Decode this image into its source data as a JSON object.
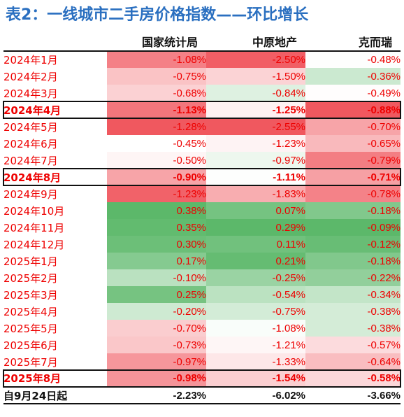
{
  "title": "表2：一线城市二手房价格指数——环比增长",
  "columns": [
    "",
    "国家统计局",
    "中原地产",
    "克而瑞"
  ],
  "rows": [
    {
      "label": "2024年1月",
      "values": [
        "-1.08%",
        "-2.50%",
        "-0.48%"
      ],
      "highlight": false
    },
    {
      "label": "2024年2月",
      "values": [
        "-0.75%",
        "-1.50%",
        "-0.36%"
      ],
      "highlight": false
    },
    {
      "label": "2024年3月",
      "values": [
        "-0.68%",
        "-0.84%",
        "-0.49%"
      ],
      "highlight": false
    },
    {
      "label": "2024年4月",
      "values": [
        "-1.13%",
        "-1.25%",
        "-0.88%"
      ],
      "highlight": true
    },
    {
      "label": "2024年5月",
      "values": [
        "-1.28%",
        "-2.55%",
        "-0.70%"
      ],
      "highlight": false
    },
    {
      "label": "2024年6月",
      "values": [
        "-0.45%",
        "-1.23%",
        "-0.65%"
      ],
      "highlight": false
    },
    {
      "label": "2024年7月",
      "values": [
        "-0.50%",
        "-0.97%",
        "-0.79%"
      ],
      "highlight": false
    },
    {
      "label": "2024年8月",
      "values": [
        "-0.90%",
        "-1.11%",
        "-0.71%"
      ],
      "highlight": true
    },
    {
      "label": "2024年9月",
      "values": [
        "-1.23%",
        "-1.83%",
        "-0.78%"
      ],
      "highlight": false
    },
    {
      "label": "2024年10月",
      "values": [
        "0.38%",
        "0.07%",
        "-0.18%"
      ],
      "highlight": false
    },
    {
      "label": "2024年11月",
      "values": [
        "0.35%",
        "0.29%",
        "-0.09%"
      ],
      "highlight": false
    },
    {
      "label": "2024年12月",
      "values": [
        "0.30%",
        "0.11%",
        "-0.12%"
      ],
      "highlight": false
    },
    {
      "label": "2025年1月",
      "values": [
        "0.17%",
        "0.21%",
        "-0.18%"
      ],
      "highlight": false
    },
    {
      "label": "2025年2月",
      "values": [
        "-0.10%",
        "-0.25%",
        "-0.22%"
      ],
      "highlight": false
    },
    {
      "label": "2025年3月",
      "values": [
        "0.25%",
        "-0.54%",
        "-0.34%"
      ],
      "highlight": false
    },
    {
      "label": "2025年4月",
      "values": [
        "-0.20%",
        "-0.75%",
        "-0.38%"
      ],
      "highlight": false
    },
    {
      "label": "2025年5月",
      "values": [
        "-0.70%",
        "-1.08%",
        "-0.38%"
      ],
      "highlight": false
    },
    {
      "label": "2025年6月",
      "values": [
        "-0.73%",
        "-1.21%",
        "-0.57%"
      ],
      "highlight": false
    },
    {
      "label": "2025年7月",
      "values": [
        "-0.97%",
        "-1.33%",
        "-0.64%"
      ],
      "highlight": false
    },
    {
      "label": "2025年8月",
      "values": [
        "-0.98%",
        "-1.54%",
        "-0.58%"
      ],
      "highlight": true
    }
  ],
  "total": {
    "label": "自9月24日起",
    "values": [
      "-2.23%",
      "-6.02%",
      "-3.66%"
    ]
  },
  "colors": {
    "title": "#2a6fc0",
    "value_text": "#ee0000",
    "negative_max": "#f0585f",
    "positive_max": "#5cb86a",
    "neutral": "#ffffff"
  }
}
